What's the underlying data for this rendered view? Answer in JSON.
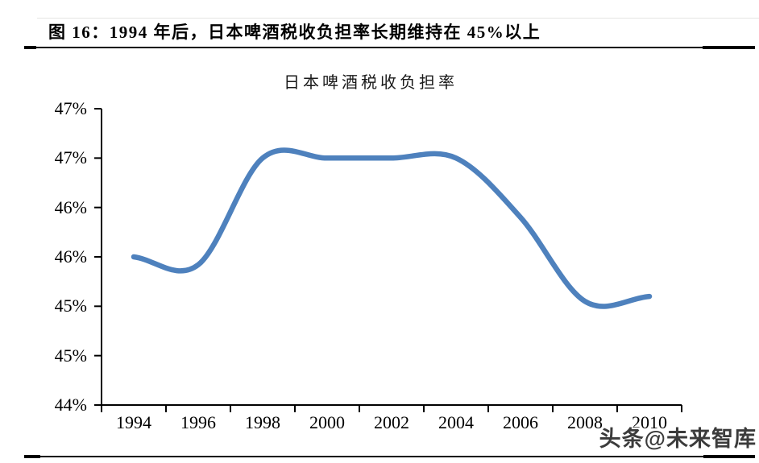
{
  "figure": {
    "caption": "图 16：1994 年后，日本啤酒税收负担率长期维持在 45%以上",
    "watermark": "头条@未来智库"
  },
  "chart_data": {
    "type": "line",
    "title": "日本啤酒税收负担率",
    "x": [
      1994,
      1996,
      1998,
      2000,
      2002,
      2004,
      2006,
      2008,
      2010
    ],
    "values": [
      46.0,
      45.92,
      47.0,
      47.0,
      47.0,
      47.0,
      46.4,
      45.55,
      45.6
    ],
    "x_tick_labels": [
      "1994",
      "1996",
      "1998",
      "2000",
      "2002",
      "2004",
      "2006",
      "2008",
      "2010"
    ],
    "y_tick_labels": [
      "47%",
      "47%",
      "46%",
      "46%",
      "45%",
      "45%",
      "44%"
    ],
    "ylim": [
      44.5,
      47.5
    ],
    "xlabel": "",
    "ylabel": "",
    "grid": false,
    "legend": "none",
    "smooth": true,
    "line_color": "#4E81BD",
    "axis_color": "#000000"
  }
}
